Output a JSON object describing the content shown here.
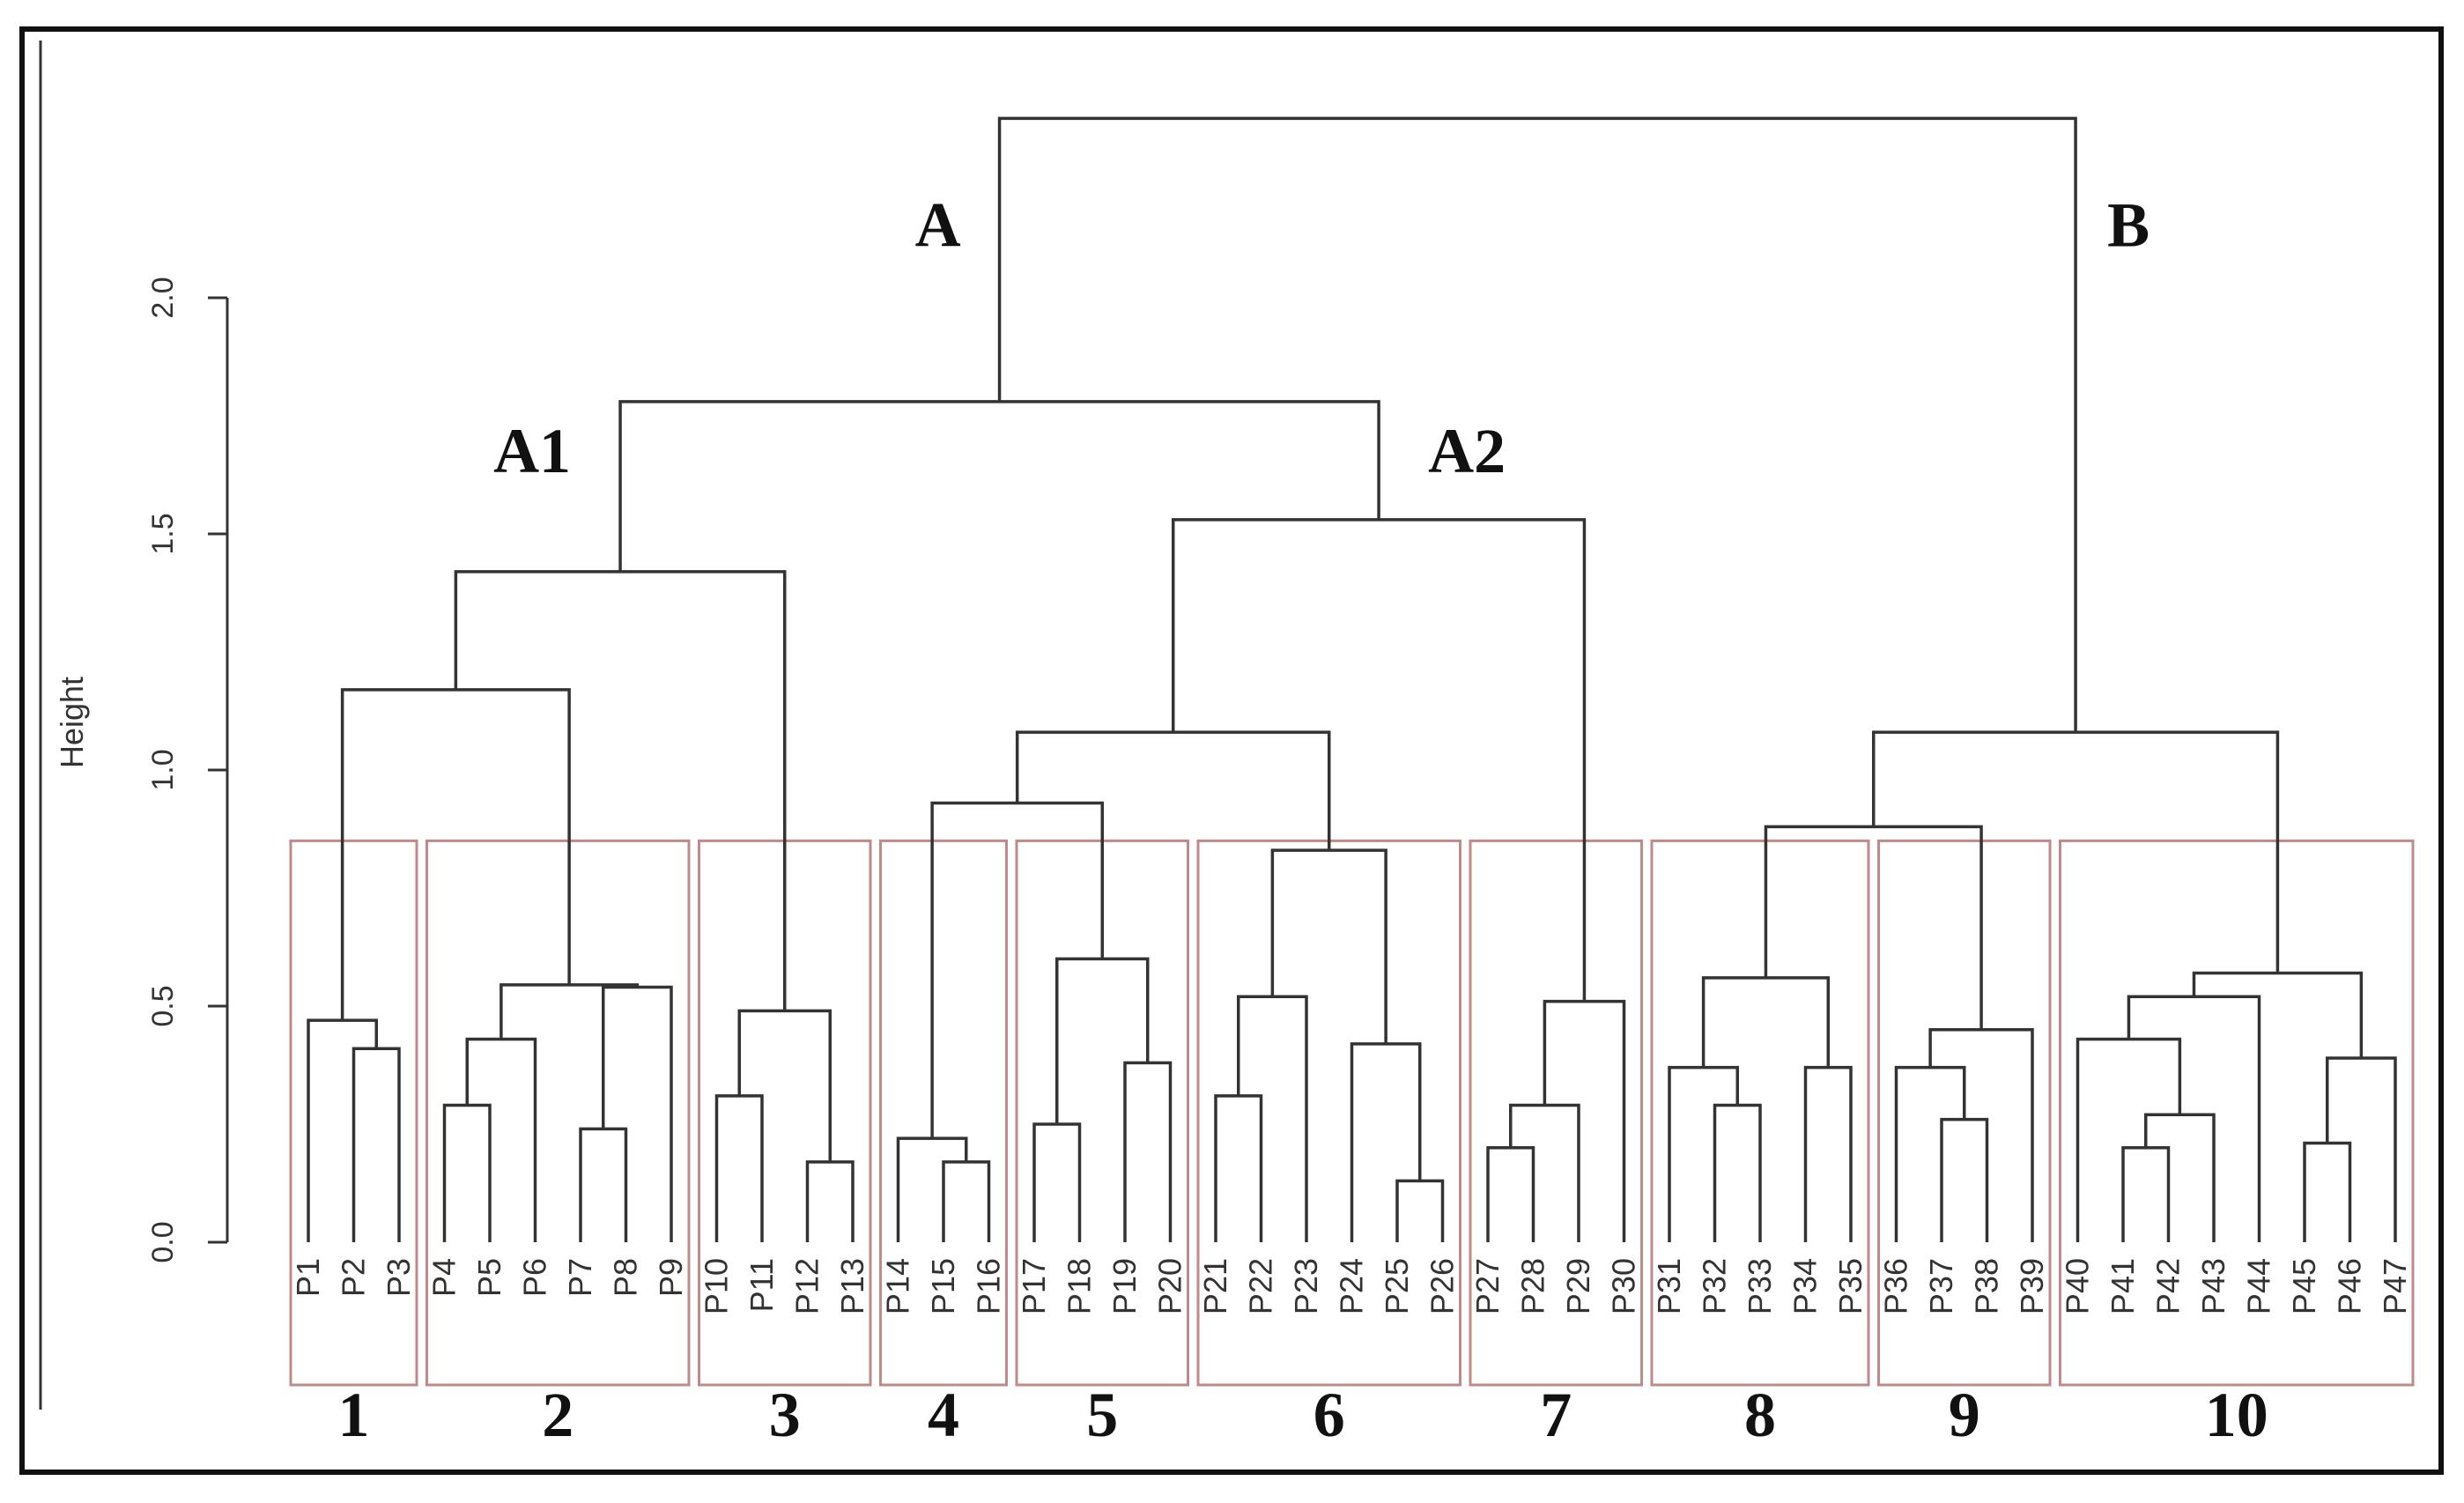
{
  "chart_data": {
    "type": "dendrogram",
    "ylabel": "Height",
    "ylim": [
      0,
      2.5
    ],
    "yticks": [
      "0.0",
      "0.5",
      "1.0",
      "1.5",
      "2.0"
    ],
    "leaves": [
      "P1",
      "P2",
      "P3",
      "P4",
      "P5",
      "P6",
      "P7",
      "P8",
      "P9",
      "P10",
      "P11",
      "P12",
      "P13",
      "P14",
      "P15",
      "P16",
      "P17",
      "P18",
      "P19",
      "P20",
      "P21",
      "P22",
      "P23",
      "P24",
      "P25",
      "P26",
      "P27",
      "P28",
      "P29",
      "P30",
      "P31",
      "P32",
      "P33",
      "P34",
      "P35",
      "P36",
      "P37",
      "P38",
      "P39",
      "P40",
      "P41",
      "P42",
      "P43",
      "P44",
      "P45",
      "P46",
      "P47"
    ],
    "merges": [
      {
        "id": "n1",
        "left": "P2",
        "right": "P3",
        "height": 0.41
      },
      {
        "id": "n2",
        "left": "P1",
        "right": "n1",
        "height": 0.47
      },
      {
        "id": "n3",
        "left": "P4",
        "right": "P5",
        "height": 0.29
      },
      {
        "id": "n4",
        "left": "n3",
        "right": "P6",
        "height": 0.43
      },
      {
        "id": "n5",
        "left": "P7",
        "right": "P8",
        "height": 0.24
      },
      {
        "id": "n6",
        "left": "n5",
        "right": "P9",
        "height": 0.54
      },
      {
        "id": "n7",
        "left": "n4",
        "right": "n6",
        "height": 0.545
      },
      {
        "id": "n8",
        "left": "P12",
        "right": "P13",
        "height": 0.17
      },
      {
        "id": "n9",
        "left": "P10",
        "right": "P11",
        "height": 0.31
      },
      {
        "id": "n10",
        "left": "n9",
        "right": "n8",
        "height": 0.49
      },
      {
        "id": "n11",
        "left": "n2",
        "right": "n7",
        "height": 1.17
      },
      {
        "id": "n12",
        "left": "n11",
        "right": "n10",
        "height": 1.42
      },
      {
        "id": "n13",
        "left": "P15",
        "right": "P16",
        "height": 0.17
      },
      {
        "id": "n14",
        "left": "P14",
        "right": "n13",
        "height": 0.22
      },
      {
        "id": "n15",
        "left": "P17",
        "right": "P18",
        "height": 0.25
      },
      {
        "id": "n16",
        "left": "P19",
        "right": "P20",
        "height": 0.38
      },
      {
        "id": "n17",
        "left": "n15",
        "right": "n16",
        "height": 0.6
      },
      {
        "id": "n18",
        "left": "n14",
        "right": "n17",
        "height": 0.93
      },
      {
        "id": "n19",
        "left": "P21",
        "right": "P22",
        "height": 0.31
      },
      {
        "id": "n20",
        "left": "n19",
        "right": "P23",
        "height": 0.52
      },
      {
        "id": "n21",
        "left": "P25",
        "right": "P26",
        "height": 0.13
      },
      {
        "id": "n22",
        "left": "P24",
        "right": "n21",
        "height": 0.42
      },
      {
        "id": "n23",
        "left": "n20",
        "right": "n22",
        "height": 0.83
      },
      {
        "id": "n24",
        "left": "n18",
        "right": "n23",
        "height": 1.08
      },
      {
        "id": "n25",
        "left": "P27",
        "right": "P28",
        "height": 0.2
      },
      {
        "id": "n26",
        "left": "n25",
        "right": "P29",
        "height": 0.29
      },
      {
        "id": "n27",
        "left": "n26",
        "right": "P30",
        "height": 0.51
      },
      {
        "id": "n28",
        "left": "n24",
        "right": "n27",
        "height": 1.53
      },
      {
        "id": "n29",
        "left": "n12",
        "right": "n28",
        "height": 1.78
      },
      {
        "id": "n30",
        "left": "P32",
        "right": "P33",
        "height": 0.29
      },
      {
        "id": "n31",
        "left": "P31",
        "right": "n30",
        "height": 0.37
      },
      {
        "id": "n32",
        "left": "P34",
        "right": "P35",
        "height": 0.37
      },
      {
        "id": "n33",
        "left": "n31",
        "right": "n32",
        "height": 0.56
      },
      {
        "id": "n34",
        "left": "P37",
        "right": "P38",
        "height": 0.26
      },
      {
        "id": "n35",
        "left": "P36",
        "right": "n34",
        "height": 0.37
      },
      {
        "id": "n36",
        "left": "n35",
        "right": "P39",
        "height": 0.45
      },
      {
        "id": "n37",
        "left": "n33",
        "right": "n36",
        "height": 0.88
      },
      {
        "id": "n38",
        "left": "P41",
        "right": "P42",
        "height": 0.2
      },
      {
        "id": "n39",
        "left": "n38",
        "right": "P43",
        "height": 0.27
      },
      {
        "id": "n40",
        "left": "P40",
        "right": "n39",
        "height": 0.43
      },
      {
        "id": "n41",
        "left": "n40",
        "right": "P44",
        "height": 0.52
      },
      {
        "id": "n42",
        "left": "P45",
        "right": "P46",
        "height": 0.21
      },
      {
        "id": "n43",
        "left": "n42",
        "right": "P47",
        "height": 0.39
      },
      {
        "id": "n44",
        "left": "n41",
        "right": "n43",
        "height": 0.57
      },
      {
        "id": "n45",
        "left": "n37",
        "right": "n44",
        "height": 1.08
      },
      {
        "id": "n46",
        "left": "n29",
        "right": "n45",
        "height": 2.38
      }
    ],
    "branch_labels": [
      {
        "text": "A",
        "node": "n29"
      },
      {
        "text": "B",
        "node": "n45"
      },
      {
        "text": "A1",
        "node": "n12"
      },
      {
        "text": "A2",
        "node": "n28"
      }
    ],
    "groups": [
      {
        "label": "1",
        "first": "P1",
        "last": "P3"
      },
      {
        "label": "2",
        "first": "P4",
        "last": "P9"
      },
      {
        "label": "3",
        "first": "P10",
        "last": "P13"
      },
      {
        "label": "4",
        "first": "P14",
        "last": "P16"
      },
      {
        "label": "5",
        "first": "P17",
        "last": "P20"
      },
      {
        "label": "6",
        "first": "P21",
        "last": "P26"
      },
      {
        "label": "7",
        "first": "P27",
        "last": "P30"
      },
      {
        "label": "8",
        "first": "P31",
        "last": "P35"
      },
      {
        "label": "9",
        "first": "P36",
        "last": "P39"
      },
      {
        "label": "10",
        "first": "P40",
        "last": "P47"
      }
    ],
    "cut_height": 0.85,
    "colors": {
      "branch": "#333333",
      "group_box": "#c08a8a"
    }
  }
}
